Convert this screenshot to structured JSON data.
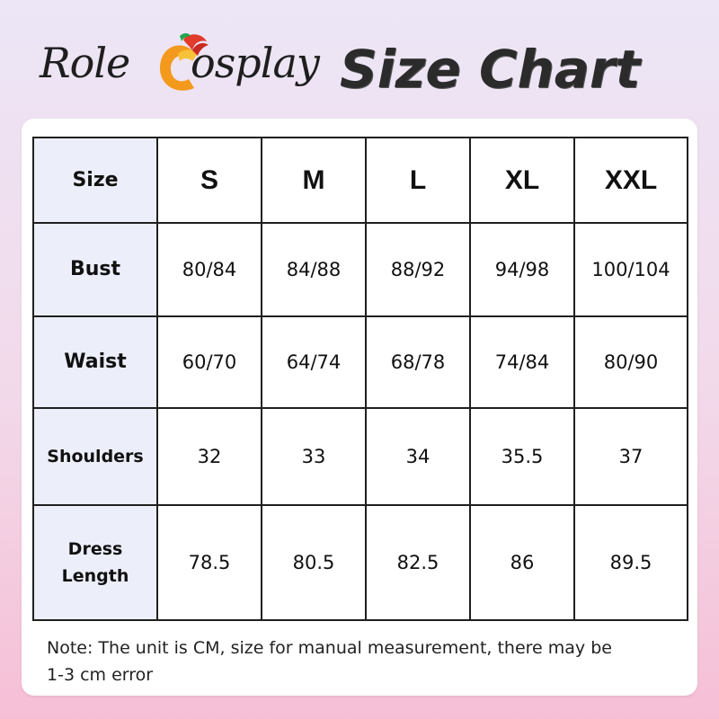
{
  "header": {
    "logo_left": "Role",
    "logo_right": "osplay",
    "title": "Size Chart"
  },
  "table": {
    "corner_label": "Size",
    "sizes": [
      "S",
      "M",
      "L",
      "XL",
      "XXL"
    ],
    "rows": [
      {
        "label": "Bust",
        "values": [
          "80/84",
          "84/88",
          "88/92",
          "94/98",
          "100/104"
        ]
      },
      {
        "label": "Waist",
        "values": [
          "60/70",
          "64/74",
          "68/78",
          "74/84",
          "80/90"
        ]
      },
      {
        "label": "Shoulders",
        "values": [
          "32",
          "33",
          "34",
          "35.5",
          "37"
        ]
      },
      {
        "label_line1": "Dress",
        "label_line2": "Length",
        "values": [
          "78.5",
          "80.5",
          "82.5",
          "86",
          "89.5"
        ]
      }
    ]
  },
  "note": {
    "line1": "Note: The unit is CM, size for manual measurement, there may be",
    "line2": "1-3 cm error"
  },
  "colors": {
    "row_header_bg": "#eceffa",
    "logo_orange": "#f08a1a",
    "logo_red": "#e23b2b",
    "logo_green": "#1fa64a"
  },
  "icons": {
    "logo": "rolecosplay-c-logo-icon"
  }
}
